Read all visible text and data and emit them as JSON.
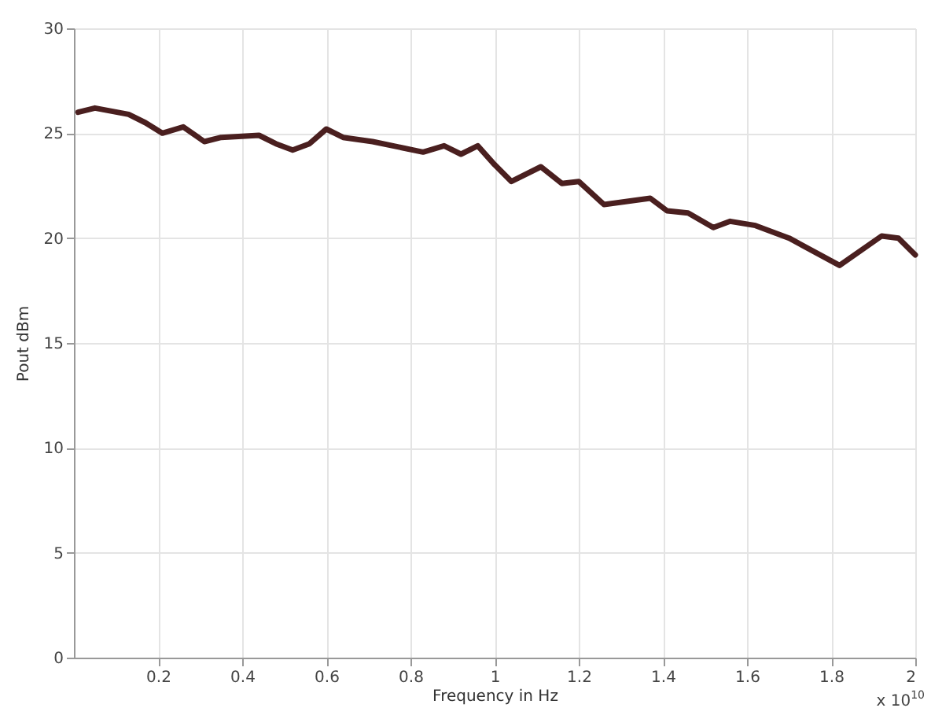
{
  "chart_data": {
    "type": "line",
    "xlabel": "Frequency in Hz",
    "ylabel": "Pout dBm",
    "annotations": [
      "x 10$^{10}$"
    ],
    "x": [
      0.01,
      0.05,
      0.13,
      0.17,
      0.21,
      0.26,
      0.31,
      0.35,
      0.44,
      0.48,
      0.52,
      0.56,
      0.6,
      0.64,
      0.71,
      0.83,
      0.88,
      0.92,
      0.96,
      1.0,
      1.04,
      1.11,
      1.16,
      1.2,
      1.26,
      1.37,
      1.41,
      1.46,
      1.52,
      1.56,
      1.62,
      1.7,
      1.82,
      1.92,
      1.96,
      2.0
    ],
    "series": [
      {
        "color": "#4a1f1f",
        "values": [
          26.0,
          26.2,
          25.9,
          25.5,
          25.0,
          25.3,
          24.6,
          24.8,
          24.9,
          24.5,
          24.2,
          24.5,
          25.2,
          24.8,
          24.6,
          24.1,
          24.4,
          24.0,
          24.4,
          23.5,
          22.7,
          23.4,
          22.6,
          22.7,
          21.6,
          21.9,
          21.3,
          21.2,
          20.5,
          20.8,
          20.6,
          20.0,
          18.7,
          20.1,
          20.0,
          19.2
        ]
      }
    ],
    "xlim": [
      0,
      2
    ],
    "xticks": [
      0.2,
      0.4,
      0.6,
      0.8,
      1,
      1.2,
      1.4,
      1.6,
      1.8,
      2
    ],
    "ylim": [
      0,
      30
    ],
    "yticks": [
      0,
      5,
      10,
      15,
      20,
      25,
      30
    ],
    "grid": true,
    "line_style": "solid"
  }
}
